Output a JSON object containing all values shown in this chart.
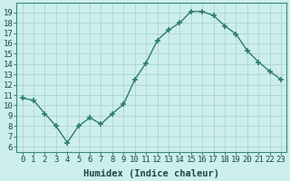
{
  "x": [
    0,
    1,
    2,
    3,
    4,
    5,
    6,
    7,
    8,
    9,
    10,
    11,
    12,
    13,
    14,
    15,
    16,
    17,
    18,
    19,
    20,
    21,
    22,
    23
  ],
  "y": [
    10.7,
    10.5,
    9.2,
    8.0,
    6.4,
    8.0,
    8.8,
    8.2,
    9.2,
    10.1,
    12.5,
    14.1,
    16.3,
    17.3,
    18.0,
    19.1,
    19.1,
    18.7,
    17.7,
    16.9,
    15.3,
    14.2,
    13.3,
    12.5
  ],
  "line_color": "#2e7d6e",
  "marker": "+",
  "marker_size": 4,
  "marker_lw": 1.2,
  "line_width": 1.0,
  "bg_color": "#cceeed",
  "grid_color": "#aed4cf",
  "xlabel": "Humidex (Indice chaleur)",
  "ylabel_ticks": [
    6,
    7,
    8,
    9,
    10,
    11,
    12,
    13,
    14,
    15,
    16,
    17,
    18,
    19
  ],
  "ylim": [
    5.5,
    19.9
  ],
  "xlim": [
    -0.5,
    23.5
  ],
  "xlabel_fontsize": 7.5,
  "tick_fontsize": 6.5,
  "spine_color": "#3a8a78"
}
